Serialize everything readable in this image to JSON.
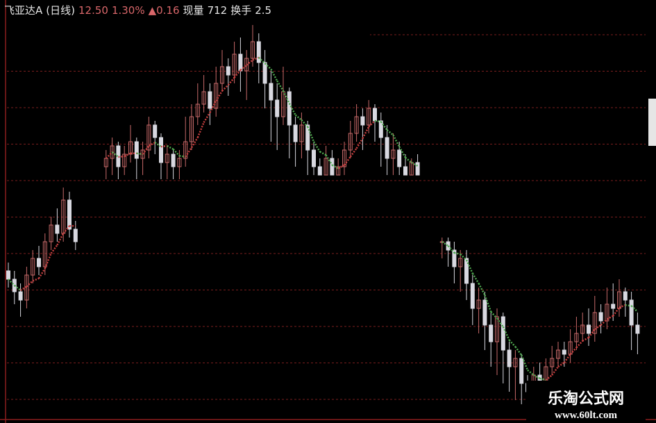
{
  "header": {
    "stock_name": "飞亚达A",
    "period": "(日线)",
    "price": "12.50",
    "change_pct": "1.30%",
    "change_arrow": "▲",
    "change": "0.16",
    "volume_label": "现量",
    "volume": "712",
    "turnover_label": "换手",
    "turnover": "2.5"
  },
  "watermark": {
    "title": "乐淘公式网",
    "url": "www.60lt.com"
  },
  "colors": {
    "up": "#c86a6a",
    "down": "#d8d8e0",
    "ma_up": "#c84040",
    "ma_down": "#4fa84f",
    "grid": "#7a1e1e",
    "background": "#000000"
  },
  "chart_data": {
    "type": "candlestick",
    "title": "",
    "ylim": [
      0,
      100
    ],
    "grid": true,
    "moving_average": {
      "period": 5,
      "style": "dotted"
    },
    "segments": [
      {
        "start_index": 0,
        "candles_ochl": [
          [
            35,
            33,
            37,
            31
          ],
          [
            33,
            30,
            35,
            27
          ],
          [
            30,
            28,
            32,
            24
          ],
          [
            28,
            34,
            36,
            26
          ],
          [
            34,
            38,
            40,
            32
          ],
          [
            38,
            36,
            41,
            34
          ],
          [
            36,
            42,
            44,
            34
          ],
          [
            42,
            46,
            48,
            40
          ],
          [
            46,
            44,
            50,
            42
          ],
          [
            44,
            52,
            55,
            42
          ],
          [
            52,
            45,
            54,
            43
          ],
          [
            45,
            42,
            47,
            40
          ]
        ]
      },
      {
        "start_index": 16,
        "candles_ochl": [
          [
            60,
            62,
            64,
            57
          ],
          [
            62,
            65,
            67,
            58
          ],
          [
            65,
            60,
            66,
            57
          ],
          [
            60,
            63,
            65,
            58
          ],
          [
            63,
            66,
            70,
            61
          ],
          [
            66,
            62,
            67,
            57
          ],
          [
            62,
            64,
            66,
            58
          ],
          [
            64,
            70,
            72,
            62
          ],
          [
            70,
            67,
            71,
            63
          ],
          [
            67,
            61,
            68,
            57
          ],
          [
            61,
            63,
            65,
            57
          ],
          [
            63,
            60,
            64,
            57
          ],
          [
            60,
            62,
            64,
            57
          ],
          [
            62,
            66,
            72,
            60
          ],
          [
            66,
            72,
            75,
            64
          ],
          [
            72,
            75,
            80,
            70
          ],
          [
            75,
            78,
            82,
            73
          ],
          [
            78,
            74,
            80,
            70
          ],
          [
            74,
            80,
            84,
            72
          ],
          [
            80,
            84,
            88,
            78
          ],
          [
            84,
            82,
            86,
            77
          ],
          [
            82,
            87,
            90,
            80
          ],
          [
            87,
            83,
            91,
            78
          ],
          [
            83,
            86,
            88,
            76
          ],
          [
            86,
            90,
            94,
            84
          ],
          [
            90,
            85,
            92,
            80
          ],
          [
            85,
            80,
            88,
            74
          ],
          [
            80,
            76,
            83,
            66
          ],
          [
            76,
            72,
            80,
            64
          ],
          [
            72,
            78,
            84,
            70
          ],
          [
            78,
            70,
            79,
            62
          ],
          [
            70,
            66,
            72,
            60
          ],
          [
            66,
            70,
            73,
            62
          ],
          [
            70,
            64,
            71,
            58
          ],
          [
            64,
            60,
            66,
            58
          ],
          [
            60,
            58,
            62,
            58
          ],
          [
            58,
            62,
            65,
            58
          ],
          [
            62,
            58,
            64,
            58
          ],
          [
            58,
            60,
            62,
            58
          ],
          [
            60,
            64,
            66,
            58
          ],
          [
            64,
            68,
            71,
            62
          ],
          [
            68,
            72,
            75,
            66
          ],
          [
            72,
            70,
            74,
            64
          ],
          [
            70,
            74,
            76,
            68
          ],
          [
            74,
            71,
            75,
            66
          ],
          [
            71,
            67,
            73,
            60
          ],
          [
            67,
            62,
            70,
            58
          ],
          [
            62,
            64,
            68,
            58
          ],
          [
            64,
            60,
            66,
            58
          ],
          [
            60,
            58,
            63,
            58
          ],
          [
            58,
            61,
            62,
            58
          ],
          [
            61,
            58,
            63,
            58
          ]
        ]
      },
      {
        "start_index": 71,
        "candles_ochl": [
          [
            42,
            42,
            43,
            38
          ],
          [
            42,
            40,
            43,
            36
          ],
          [
            40,
            36,
            42,
            32
          ],
          [
            36,
            38,
            40,
            30
          ],
          [
            38,
            32,
            40,
            28
          ],
          [
            32,
            26,
            34,
            22
          ],
          [
            26,
            28,
            31,
            20
          ],
          [
            28,
            22,
            30,
            16
          ],
          [
            22,
            18,
            25,
            12
          ],
          [
            18,
            24,
            26,
            10
          ],
          [
            24,
            16,
            25,
            8
          ],
          [
            16,
            12,
            18,
            6
          ],
          [
            12,
            14,
            16,
            4
          ],
          [
            14,
            8,
            15,
            3
          ],
          [
            8,
            6,
            10,
            2
          ],
          [
            6,
            10,
            12,
            3
          ],
          [
            10,
            8,
            13,
            4
          ],
          [
            8,
            12,
            14,
            6
          ],
          [
            12,
            14,
            17,
            10
          ],
          [
            14,
            16,
            18,
            12
          ],
          [
            16,
            15,
            18,
            12
          ],
          [
            15,
            18,
            21,
            13
          ],
          [
            18,
            20,
            24,
            16
          ],
          [
            20,
            22,
            25,
            18
          ],
          [
            22,
            20,
            26,
            17
          ],
          [
            20,
            25,
            29,
            18
          ],
          [
            25,
            23,
            27,
            20
          ],
          [
            23,
            27,
            31,
            21
          ],
          [
            27,
            26,
            32,
            23
          ],
          [
            26,
            30,
            33,
            24
          ],
          [
            30,
            28,
            31,
            24
          ],
          [
            28,
            22,
            30,
            16
          ],
          [
            22,
            20,
            25,
            15
          ]
        ]
      }
    ]
  }
}
